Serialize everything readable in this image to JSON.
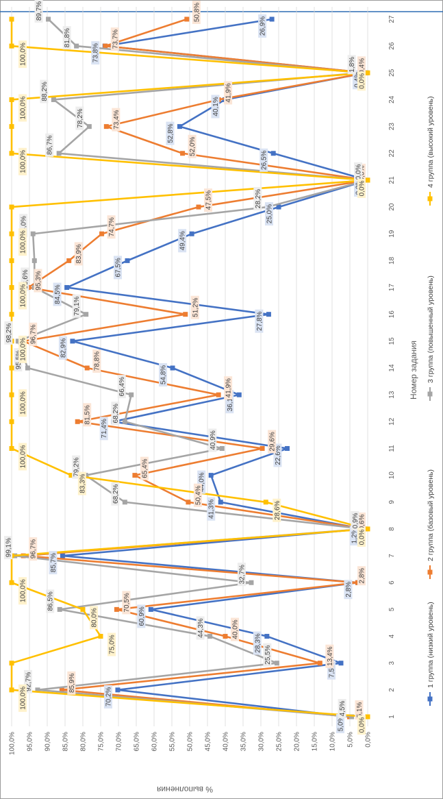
{
  "chart_data": {
    "type": "line",
    "title": "",
    "xlabel": "Номер задания",
    "ylabel": "% выполнения",
    "x": [
      1,
      2,
      3,
      4,
      5,
      6,
      7,
      8,
      9,
      10,
      11,
      12,
      13,
      14,
      15,
      16,
      17,
      18,
      19,
      20,
      21,
      22,
      23,
      24,
      25,
      26,
      27
    ],
    "y_ticks": [
      "0,0%",
      "5,0%",
      "10,0%",
      "15,0%",
      "20,0%",
      "25,0%",
      "30,0%",
      "35,0%",
      "40,0%",
      "45,0%",
      "50,0%",
      "55,0%",
      "60,0%",
      "65,0%",
      "70,0%",
      "75,0%",
      "80,0%",
      "85,0%",
      "90,0%",
      "95,0%",
      "100,0%"
    ],
    "ylim": [
      0,
      100
    ],
    "rotation": "rotated 90° clockwise",
    "legend_position": "bottom",
    "series": [
      {
        "name": "1 группа (низкий уровень)",
        "color": "#4472C4",
        "marker": "square",
        "values": [
          5.0,
          70.2,
          7.5,
          28.3,
          60.9,
          2.8,
          85.7,
          1.2,
          41.3,
          44.0,
          22.6,
          71.4,
          36.1,
          54.8,
          82.9,
          27.8,
          84.5,
          67.5,
          49.4,
          25.0,
          0.0,
          26.5,
          52.8,
          40.1,
          0.4,
          73.8,
          26.9
        ],
        "labels": [
          "5,0%",
          "70,2%",
          "7,5%",
          "28,3%",
          "60,9%",
          "2,8%",
          "85,7%",
          "1,2%",
          "41,3%",
          "44,0%",
          "22,6%",
          "71,4%",
          "36,1%",
          "54,8%",
          "82,9%",
          "27,8%",
          "84,5%",
          "67,5%",
          "49,4%",
          "25,0%",
          "0,0%",
          "26,5%",
          "52,8%",
          "40,1%",
          "0,4%",
          "73,8%",
          "26,9%"
        ]
      },
      {
        "name": "2 группа (базовый уровень)",
        "color": "#ED7D31",
        "marker": "square",
        "values": [
          5.1,
          85.9,
          13.4,
          40.0,
          70.5,
          2.8,
          96.7,
          0.6,
          50.4,
          65.4,
          29.6,
          81.5,
          41.9,
          78.8,
          96.7,
          51.2,
          95.3,
          83.9,
          74.7,
          47.5,
          0.0,
          52.0,
          73.4,
          41.9,
          0.4,
          73.7,
          50.8
        ],
        "labels": [
          "5,1%",
          "85,9%",
          "13,4%",
          "40,0%",
          "70,5%",
          "2,8%",
          "96,7%",
          "0,6%",
          "50,4%",
          "65,4%",
          "29,6%",
          "81,5%",
          "41,9%",
          "78,8%",
          "96,7%",
          "51,2%",
          "95,3%",
          "83,9%",
          "74,7%",
          "47,5%",
          "0,0%",
          "52,0%",
          "73,4%",
          "41,9%",
          "0,4%",
          "73,7%",
          "50,8%"
        ]
      },
      {
        "name": "3 группа (повышенный уровень)",
        "color": "#A5A5A5",
        "marker": "square",
        "values": [
          4.5,
          92.7,
          25.5,
          44.3,
          86.5,
          32.7,
          99.1,
          0.9,
          68.2,
          79.2,
          40.9,
          68.2,
          66.4,
          95.5,
          98.2,
          79.1,
          93.6,
          93.6,
          94.0,
          28.2,
          0.0,
          86.7,
          78.2,
          88.2,
          1.8,
          81.8,
          89.7
        ],
        "labels": [
          "4,5%",
          "92,7%",
          "25,5%",
          "44,3%",
          "86,5%",
          "32,7%",
          "99,1%",
          "0,9%",
          "68,2%",
          "79,2%",
          "40,9%",
          "68,2%",
          "66,4%",
          "95,5%",
          "98,2%",
          "79,1%",
          "93,6%",
          "",
          "94,0%",
          "28,2%",
          "0,0%",
          "86,7%",
          "78,2%",
          "88,2%",
          "1,8%",
          "81,8%",
          "89,7%"
        ]
      },
      {
        "name": "4 группа (высокий уровень)",
        "color": "#FFC000",
        "marker": "square",
        "values": [
          0.0,
          100.0,
          100.0,
          75.0,
          80.0,
          100.0,
          100.0,
          0.0,
          28.6,
          83.3,
          100.0,
          100.0,
          100.0,
          100.0,
          100.0,
          100.0,
          100.0,
          100.0,
          100.0,
          100.0,
          0.0,
          100.0,
          100.0,
          100.0,
          0.0,
          100.0,
          100.0
        ],
        "labels": [
          "0,0%",
          "100,0%",
          "",
          "75,0%",
          "80,0%",
          "100,0%",
          "",
          "0,0%",
          "28,6%",
          "83,3%",
          "100,0%",
          "",
          "100,0%",
          "",
          "100,0%",
          "",
          "100,0%",
          "",
          "100,0%",
          "",
          "0,0%",
          "100,0%",
          "",
          "100,0%",
          "0,0%",
          "100,0%",
          ""
        ]
      }
    ]
  }
}
